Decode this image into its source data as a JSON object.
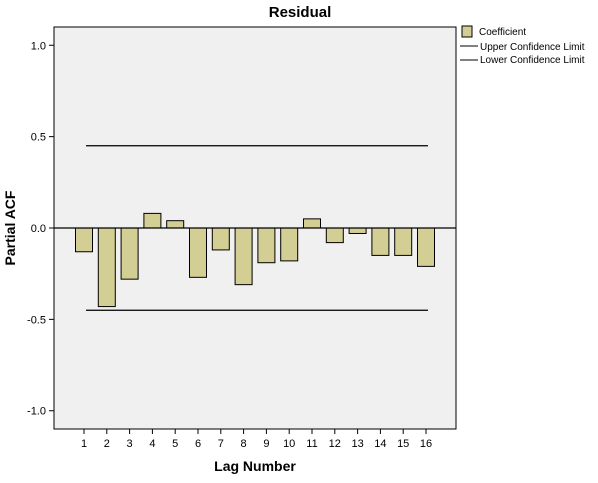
{
  "chart_data": {
    "type": "bar",
    "title": "Residual",
    "xlabel": "Lag Number",
    "ylabel": "Partial ACF",
    "ylim": [
      -1.1,
      1.1
    ],
    "yticks": [
      1.0,
      0.5,
      0.0,
      -0.5,
      -1.0
    ],
    "ytick_labels": [
      "1.0",
      "0.5",
      "0.0",
      "-0.5",
      "-1.0"
    ],
    "categories": [
      "1",
      "2",
      "3",
      "4",
      "5",
      "6",
      "7",
      "8",
      "9",
      "10",
      "11",
      "12",
      "13",
      "14",
      "15",
      "16"
    ],
    "series": [
      {
        "name": "Coefficient",
        "values": [
          -0.13,
          -0.43,
          -0.28,
          0.08,
          0.04,
          -0.27,
          -0.12,
          -0.31,
          -0.19,
          -0.18,
          0.05,
          -0.08,
          -0.03,
          -0.15,
          -0.15,
          -0.21
        ]
      }
    ],
    "upper_confidence_limit": 0.45,
    "lower_confidence_limit": -0.45,
    "legend": {
      "position": "top-right",
      "entries": [
        "Coefficient",
        "Upper Confidence Limit",
        "Lower Confidence Limit"
      ]
    },
    "colors": {
      "bar_fill": "#d3ce93",
      "bar_stroke": "#000000",
      "plot_background": "#f0f0f0",
      "line": "#000000"
    },
    "grid": false
  }
}
